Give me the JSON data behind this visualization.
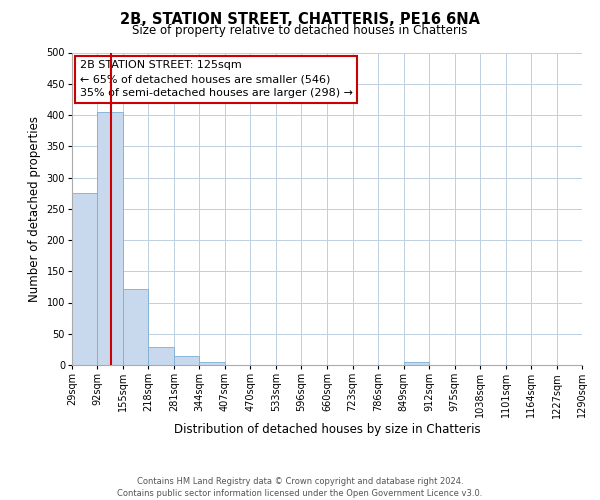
{
  "title": "2B, STATION STREET, CHATTERIS, PE16 6NA",
  "subtitle": "Size of property relative to detached houses in Chatteris",
  "xlabel": "Distribution of detached houses by size in Chatteris",
  "ylabel": "Number of detached properties",
  "bin_edges": [
    29,
    92,
    155,
    218,
    281,
    344,
    407,
    470,
    533,
    596,
    660,
    723,
    786,
    849,
    912,
    975,
    1038,
    1101,
    1164,
    1227,
    1290
  ],
  "bar_heights": [
    275,
    405,
    122,
    29,
    15,
    5,
    0,
    0,
    0,
    0,
    0,
    0,
    0,
    5,
    0,
    0,
    0,
    0,
    0,
    0
  ],
  "bar_color": "#c8d9ee",
  "bar_edgecolor": "#7aaed4",
  "vline_color": "#cc0000",
  "vline_x": 125,
  "annotation_title": "2B STATION STREET: 125sqm",
  "annotation_line1": "← 65% of detached houses are smaller (546)",
  "annotation_line2": "35% of semi-detached houses are larger (298) →",
  "annotation_box_edgecolor": "#cc0000",
  "ylim": [
    0,
    500
  ],
  "yticks": [
    0,
    50,
    100,
    150,
    200,
    250,
    300,
    350,
    400,
    450,
    500
  ],
  "xtick_labels": [
    "29sqm",
    "92sqm",
    "155sqm",
    "218sqm",
    "281sqm",
    "344sqm",
    "407sqm",
    "470sqm",
    "533sqm",
    "596sqm",
    "660sqm",
    "723sqm",
    "786sqm",
    "849sqm",
    "912sqm",
    "975sqm",
    "1038sqm",
    "1101sqm",
    "1164sqm",
    "1227sqm",
    "1290sqm"
  ],
  "footer_line1": "Contains HM Land Registry data © Crown copyright and database right 2024.",
  "footer_line2": "Contains public sector information licensed under the Open Government Licence v3.0.",
  "background_color": "#ffffff",
  "grid_color": "#c0cfe0",
  "title_fontsize": 10.5,
  "subtitle_fontsize": 8.5,
  "ylabel_fontsize": 8.5,
  "xlabel_fontsize": 8.5,
  "tick_fontsize": 7,
  "annotation_fontsize": 8,
  "footer_fontsize": 6
}
